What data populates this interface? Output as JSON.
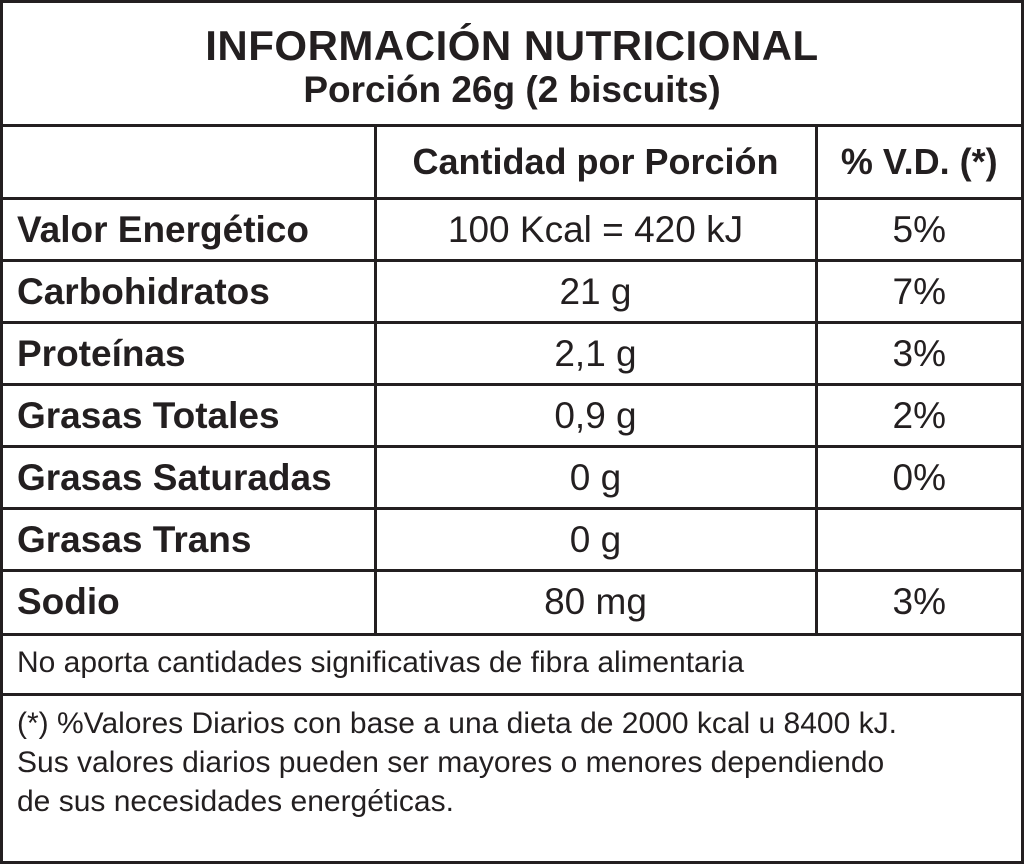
{
  "header": {
    "title": "INFORMACIÓN NUTRICIONAL",
    "serving": "Porción 26g (2 biscuits)"
  },
  "columns": {
    "nutrient": "",
    "amount": "Cantidad por Porción",
    "daily_value": "% V.D. (*)"
  },
  "rows": [
    {
      "name": "Valor Energético",
      "amount": "100 Kcal = 420 kJ",
      "dv": "5%"
    },
    {
      "name": "Carbohidratos",
      "amount": "21 g",
      "dv": "7%"
    },
    {
      "name": "Proteínas",
      "amount": "2,1 g",
      "dv": "3%"
    },
    {
      "name": "Grasas Totales",
      "amount": "0,9 g",
      "dv": "2%"
    },
    {
      "name": "Grasas Saturadas",
      "amount": "0 g",
      "dv": "0%"
    },
    {
      "name": "Grasas Trans",
      "amount": "0 g",
      "dv": ""
    },
    {
      "name": "Sodio",
      "amount": "80 mg",
      "dv": "3%"
    }
  ],
  "note": "No aporta cantidades significativas de fibra alimentaria",
  "footnote": {
    "line1": "(*) %Valores Diarios con base a una dieta de 2000 kcal u 8400 kJ.",
    "line2": "Sus valores diarios pueden ser mayores o menores dependiendo",
    "line3": "de sus necesidades energéticas."
  }
}
